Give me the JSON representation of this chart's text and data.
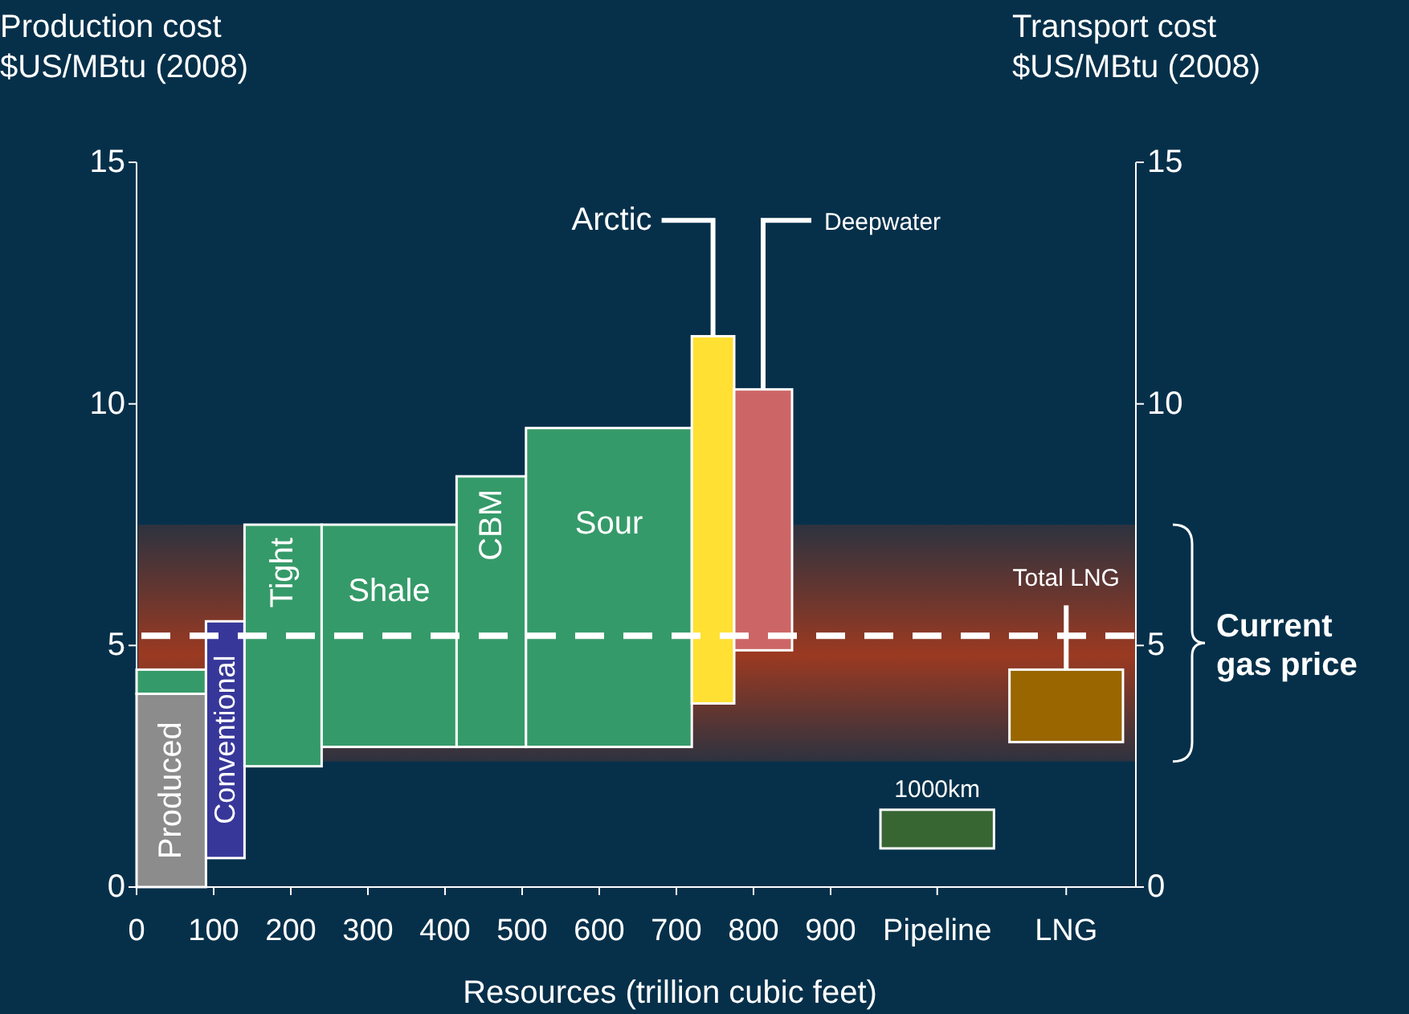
{
  "chart_data": [
    {
      "type": "bar",
      "xlabel": "Resources (trillion cubic feet)",
      "ylabel": "Production cost\n$US/MBtu (2008)",
      "xlim": [
        0,
        900
      ],
      "xticks": [
        0,
        100,
        200,
        300,
        400,
        500,
        600,
        700,
        800,
        900
      ],
      "ylim": [
        0,
        15
      ],
      "yticks": [
        0,
        5,
        10,
        15
      ],
      "series": [
        {
          "name": "Produced",
          "x": [
            45
          ],
          "values": [
            4
          ],
          "base": [
            0
          ],
          "color": "#8c8c8c"
        },
        {
          "x": [
            45
          ],
          "values": [
            0.5
          ],
          "base": [
            4
          ],
          "color": "#359a69"
        },
        {
          "name": "Conventional",
          "x": [
            115
          ],
          "values": [
            4.9
          ],
          "base": [
            0.6
          ],
          "color": "#37379a"
        },
        {
          "name": "Tight",
          "x": [
            190
          ],
          "values": [
            5.0
          ],
          "base": [
            2.5
          ],
          "color": "#359a69"
        },
        {
          "name": "Shale",
          "x": [
            327.5
          ],
          "values": [
            4.6
          ],
          "base": [
            2.9
          ],
          "color": "#359a69"
        },
        {
          "name": "CBM",
          "x": [
            460
          ],
          "values": [
            5.6
          ],
          "base": [
            2.9
          ],
          "color": "#359a69"
        },
        {
          "name": "Sour",
          "x": [
            612.5
          ],
          "values": [
            6.6
          ],
          "base": [
            2.9
          ],
          "color": "#359a69"
        },
        {
          "name": "Arctic",
          "x": [
            747.5
          ],
          "values": [
            7.6
          ],
          "base": [
            3.8
          ],
          "color": "#ffe033"
        },
        {
          "name": "Deepwater",
          "x": [
            812.5
          ],
          "values": [
            5.4
          ],
          "base": [
            4.9
          ],
          "color": "#cc6666"
        }
      ],
      "ref_lines": [
        {
          "axis": "y",
          "value": 5.2,
          "color": "#ffffff",
          "line_style": "dashed"
        }
      ],
      "bands": [
        {
          "axis": "y",
          "from": 2.6,
          "to": 7.5,
          "label": "Current gas price",
          "color": "#a33a1f"
        }
      ]
    },
    {
      "type": "bar",
      "categories": [
        "Pipeline",
        "LNG"
      ],
      "values": [
        0.8,
        1.5
      ],
      "base": [
        0.8,
        3.0
      ],
      "colors": [
        "#386633",
        "#996600"
      ],
      "ylabel": "Transport cost\n$US/MBtu (2008)",
      "ylim": [
        0,
        15
      ],
      "yticks": [
        0,
        5,
        10,
        15
      ],
      "annotations": [
        "1000km",
        "Total LNG"
      ]
    }
  ]
}
